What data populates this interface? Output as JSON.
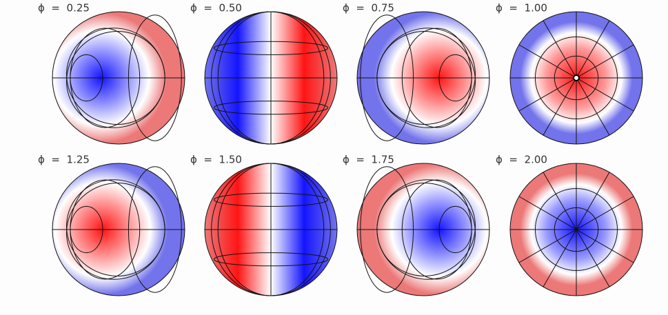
{
  "panels": [
    {
      "label": "ϕ  =  0.25"
    },
    {
      "label": "ϕ  =  0.50"
    },
    {
      "label": "ϕ  =  0.75"
    },
    {
      "label": "ϕ  =  1.00"
    },
    {
      "label": "ϕ  =  1.25"
    },
    {
      "label": "ϕ  =  1.50"
    },
    {
      "label": "ϕ  =  1.75"
    },
    {
      "label": "ϕ  =  2.00"
    }
  ]
}
